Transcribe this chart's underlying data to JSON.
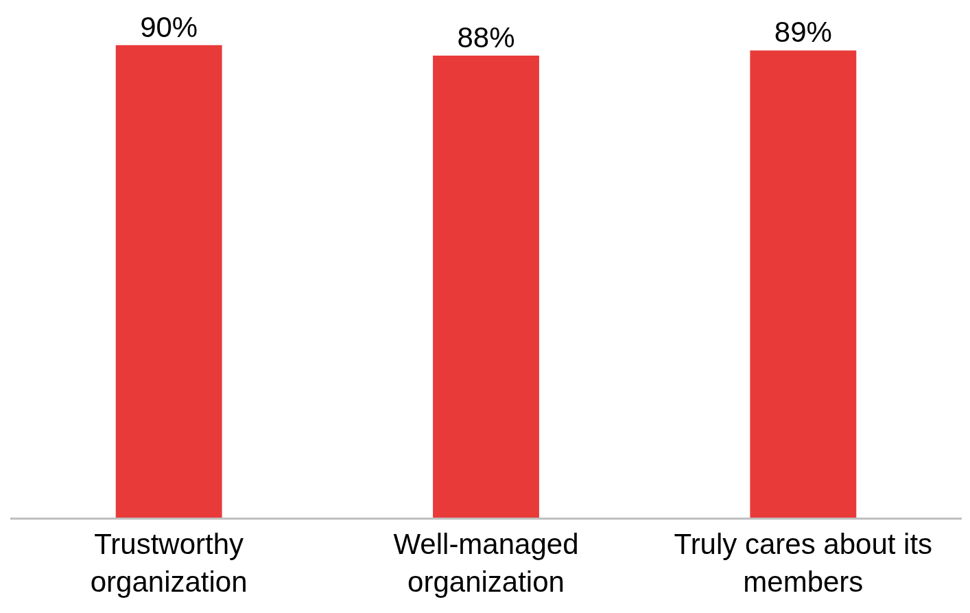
{
  "chart_data": {
    "type": "bar",
    "categories": [
      "Trustworthy organization",
      "Well-managed organization",
      "Truly cares about its members"
    ],
    "values": [
      90,
      88,
      89
    ],
    "value_labels": [
      "90%",
      "88%",
      "89%"
    ],
    "color": "#e93a3a",
    "ylim": [
      0,
      98.6
    ],
    "tick_labels": "x"
  }
}
